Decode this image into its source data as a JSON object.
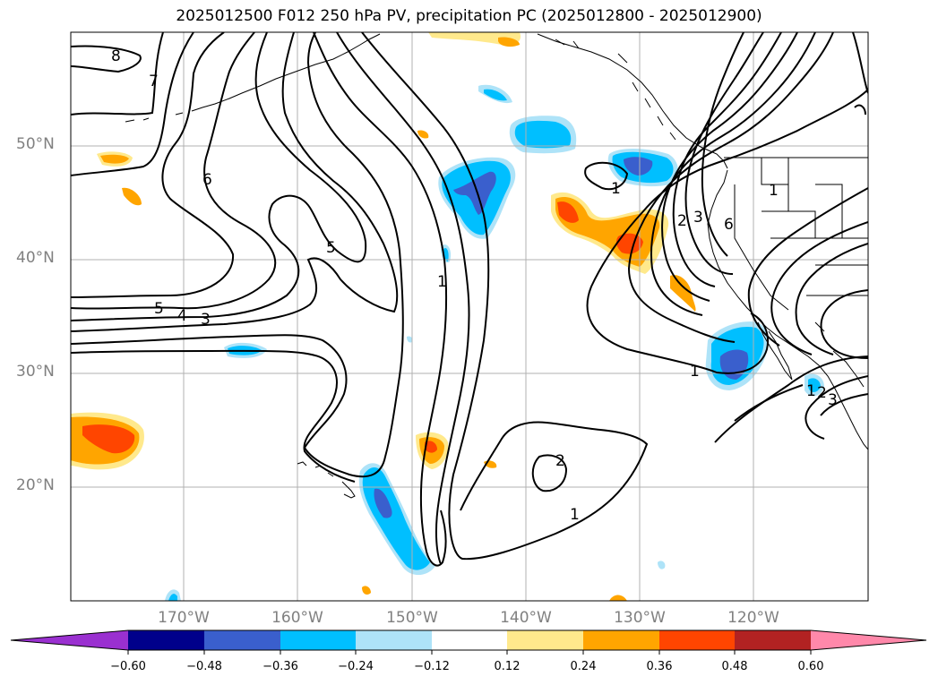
{
  "title": "2025012500 F012 250 hPa PV, precipitation PC (2025012800 - 2025012900)",
  "map": {
    "lat_labels": [
      "50°N",
      "40°N",
      "30°N",
      "20°N"
    ],
    "lon_labels": [
      "170°W",
      "160°W",
      "150°W",
      "140°W",
      "130°W",
      "120°W"
    ],
    "gridline_color": "#b0b0b0",
    "contour_labels": [
      "8",
      "7",
      "6",
      "5",
      "5",
      "4",
      "3",
      "1",
      "1",
      "2",
      "3",
      "6",
      "1",
      "1",
      "2",
      "1",
      "1",
      "2",
      "3"
    ]
  },
  "colorbar": {
    "ticks": [
      "−0.60",
      "−0.48",
      "−0.36",
      "−0.24",
      "−0.12",
      "0.12",
      "0.24",
      "0.36",
      "0.48",
      "0.60"
    ],
    "colors": [
      "#9a30d0",
      "#00008b",
      "#3a5fcd",
      "#00bfff",
      "#aee3f8",
      "#ffffff",
      "#ffe98c",
      "#ffa500",
      "#ff4500",
      "#b22222",
      "#ff88aa"
    ]
  }
}
